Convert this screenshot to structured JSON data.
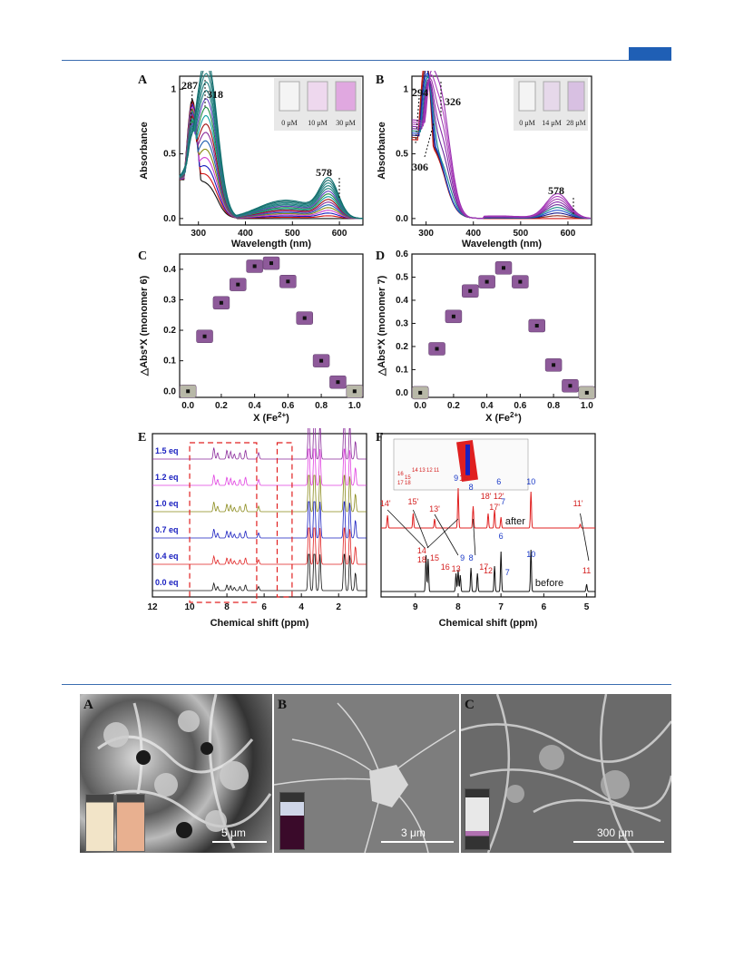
{
  "panels": {
    "A": {
      "label": "A",
      "peaks": [
        "287",
        "318",
        "578"
      ],
      "vials": [
        "0 μM",
        "10 μM",
        "30 μM"
      ],
      "xlabel": "Wavelength (nm)",
      "ylabel": "Absorbance"
    },
    "B": {
      "label": "B",
      "peaks": [
        "294",
        "326",
        "306",
        "578"
      ],
      "vials": [
        "0 μM",
        "14 μM",
        "28 μM"
      ],
      "xlabel": "Wavelength (nm)",
      "ylabel": "Absorbance"
    },
    "C": {
      "label": "C",
      "xlabel": "X (Fe2+)",
      "ylabel": "△Abs*X (monomer 6)"
    },
    "D": {
      "label": "D",
      "xlabel": "X (Fe2+)",
      "ylabel": "△Abs*X (monomer 7)"
    },
    "E": {
      "label": "E",
      "xlabel": "Chemical shift (ppm)",
      "eq_labels": [
        "1.5 eq",
        "1.2 eq",
        "1.0 eq",
        "0.7 eq",
        "0.4 eq",
        "0.0 eq"
      ]
    },
    "F": {
      "label": "F",
      "xlabel": "Chemical shift (ppm)",
      "after": "after",
      "before": "before",
      "after_labels": [
        "14'",
        "15'",
        "13'",
        "9",
        "16'",
        "8",
        "18'",
        "12'",
        "17'",
        "6",
        "7",
        "10",
        "11'"
      ],
      "before_labels": [
        "14",
        "18",
        "15",
        "16",
        "13",
        "9",
        "8",
        "17",
        "6",
        "12",
        "7",
        "10",
        "11"
      ],
      "struct_numbers": [
        "16",
        "14",
        "13",
        "12",
        "11",
        "15",
        "17",
        "18"
      ]
    }
  },
  "sem": [
    {
      "label": "A",
      "scale": "5 μm"
    },
    {
      "label": "B",
      "scale": "3 μm"
    },
    {
      "label": "C",
      "scale": "300 μm"
    }
  ],
  "chart_data": [
    {
      "type": "line",
      "panel": "A",
      "xlabel": "Wavelength (nm)",
      "ylabel": "Absorbance",
      "xlim": [
        260,
        650
      ],
      "ylim": [
        -0.05,
        1.1
      ],
      "xticks": [
        300,
        400,
        500,
        600
      ],
      "yticks": [
        0.0,
        0.5,
        1.0
      ],
      "annotations": [
        "287",
        "318",
        "578"
      ]
    },
    {
      "type": "line",
      "panel": "B",
      "xlabel": "Wavelength (nm)",
      "ylabel": "Absorbance",
      "xlim": [
        270,
        650
      ],
      "ylim": [
        -0.05,
        1.1
      ],
      "xticks": [
        300,
        400,
        500,
        600
      ],
      "yticks": [
        0.0,
        0.5,
        1.0
      ],
      "annotations": [
        "294",
        "326",
        "306",
        "578"
      ]
    },
    {
      "type": "scatter",
      "panel": "C",
      "xlabel": "X (Fe2+)",
      "ylabel": "△Abs*X (monomer 6)",
      "xlim": [
        -0.05,
        1.05
      ],
      "ylim": [
        -0.02,
        0.45
      ],
      "xticks": [
        0.0,
        0.2,
        0.4,
        0.6,
        0.8,
        1.0
      ],
      "yticks": [
        0.0,
        0.1,
        0.2,
        0.3,
        0.4
      ],
      "x": [
        0.0,
        0.1,
        0.2,
        0.3,
        0.4,
        0.5,
        0.6,
        0.7,
        0.8,
        0.9,
        1.0
      ],
      "y": [
        0.0,
        0.18,
        0.29,
        0.35,
        0.41,
        0.42,
        0.36,
        0.24,
        0.1,
        0.03,
        0.0
      ]
    },
    {
      "type": "scatter",
      "panel": "D",
      "xlabel": "X (Fe2+)",
      "ylabel": "△Abs*X (monomer 7)",
      "xlim": [
        -0.05,
        1.05
      ],
      "ylim": [
        -0.02,
        0.6
      ],
      "xticks": [
        0.0,
        0.2,
        0.4,
        0.6,
        0.8,
        1.0
      ],
      "yticks": [
        0.0,
        0.1,
        0.2,
        0.3,
        0.4,
        0.5,
        0.6
      ],
      "x": [
        0.0,
        0.1,
        0.2,
        0.3,
        0.4,
        0.5,
        0.6,
        0.7,
        0.8,
        0.9,
        1.0
      ],
      "y": [
        0.0,
        0.19,
        0.33,
        0.44,
        0.48,
        0.54,
        0.48,
        0.29,
        0.12,
        0.03,
        0.0
      ]
    },
    {
      "type": "line",
      "panel": "E",
      "xlabel": "Chemical shift (ppm)",
      "xlim": [
        12,
        0.5
      ],
      "xticks": [
        12,
        10,
        8,
        6,
        4,
        2
      ],
      "series": [
        {
          "name": "1.5 eq"
        },
        {
          "name": "1.2 eq"
        },
        {
          "name": "1.0 eq"
        },
        {
          "name": "0.7 eq"
        },
        {
          "name": "0.4 eq"
        },
        {
          "name": "0.0 eq"
        }
      ]
    },
    {
      "type": "line",
      "panel": "F",
      "xlabel": "Chemical shift (ppm)",
      "xlim": [
        9.8,
        4.8
      ],
      "xticks": [
        9,
        8,
        7,
        6,
        5
      ],
      "series": [
        {
          "name": "after"
        },
        {
          "name": "before"
        }
      ]
    }
  ],
  "colors": {
    "accent": "#1f5fb5",
    "red": "#e02020",
    "blue": "#1a3ac8",
    "purple": "#8a2a9a",
    "magenta": "#e040e0",
    "olive": "#8a8a1a"
  }
}
